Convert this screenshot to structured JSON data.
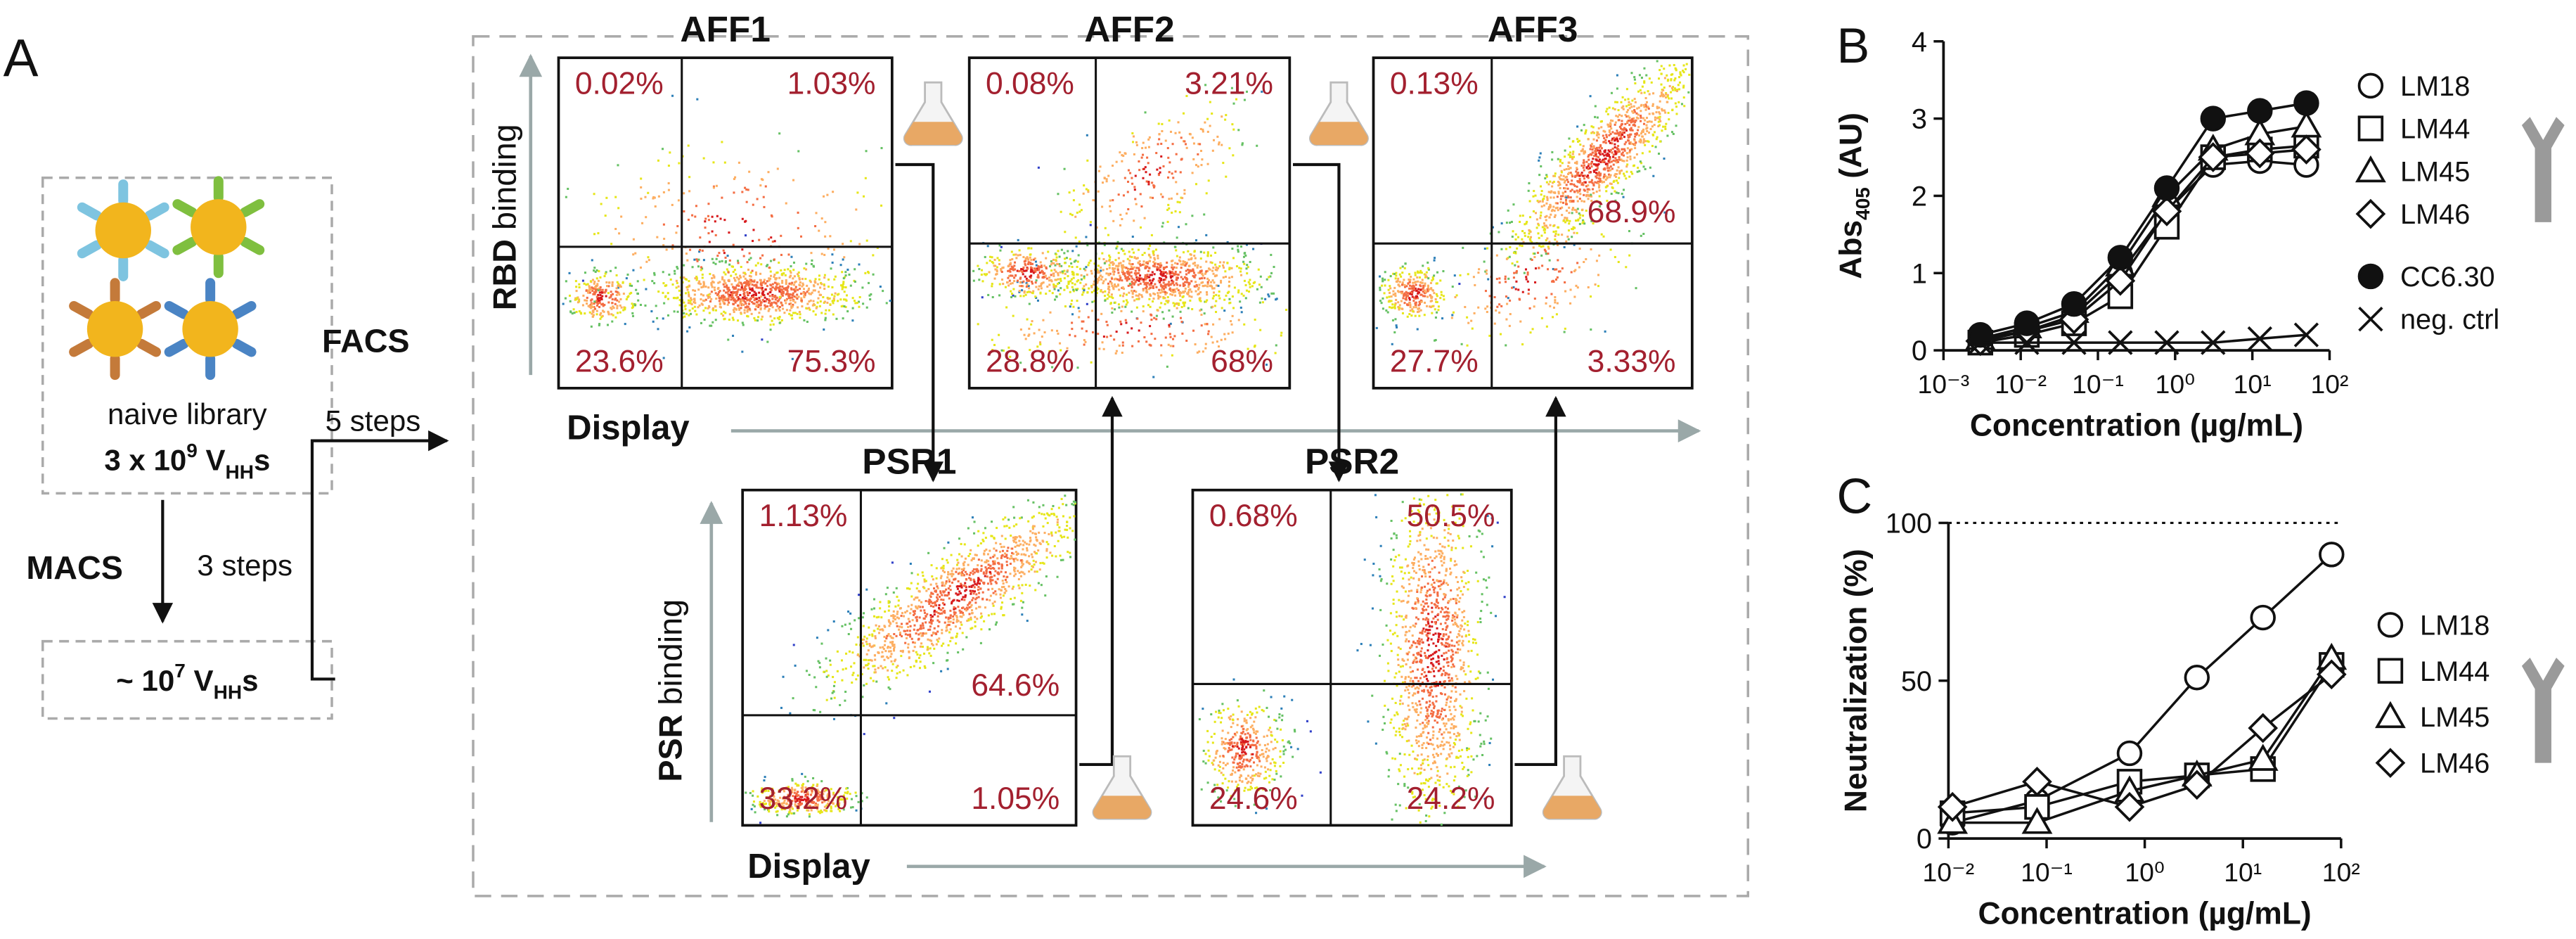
{
  "panel_a": {
    "label": "A",
    "library": {
      "line1": "naive library",
      "line2": [
        "3 x 10",
        "9",
        " V",
        "HH",
        "s"
      ]
    },
    "macs": "MACS",
    "macs_steps": "3 steps",
    "enriched": [
      "~ 10",
      "7",
      " V",
      "HH",
      "s"
    ],
    "facs": "FACS",
    "facs_steps": "5 steps",
    "rbd_axis": [
      "RBD",
      " binding"
    ],
    "psr_axis": [
      "PSR",
      " binding"
    ],
    "display_axis": "Display"
  },
  "facs": [
    {
      "title": "AFF1",
      "quadrants": [
        "0.02%",
        "1.03%",
        "23.6%",
        "75.3%"
      ]
    },
    {
      "title": "AFF2",
      "quadrants": [
        "0.08%",
        "3.21%",
        "28.8%",
        "68%"
      ]
    },
    {
      "title": "AFF3",
      "quadrants": [
        "0.13%",
        "68.9%",
        "27.7%",
        "3.33%"
      ]
    },
    {
      "title": "PSR1",
      "quadrants": [
        "1.13%",
        "64.6%",
        "33.2%",
        "1.05%"
      ]
    },
    {
      "title": "PSR2",
      "quadrants": [
        "0.68%",
        "50.5%",
        "24.6%",
        "24.2%"
      ]
    }
  ],
  "chart_data": [
    {
      "type": "line",
      "panel": "B",
      "xlabel": "Concentration (µg/mL)",
      "ylabel": [
        "Abs",
        "405",
        " (AU)"
      ],
      "xscale": "log",
      "x": [
        0.003,
        0.012,
        0.049,
        0.195,
        0.78,
        3.1,
        12.5,
        50
      ],
      "xlim": [
        0.001,
        100
      ],
      "xticks": [
        {
          "value": 0.001,
          "label": "10⁻³"
        },
        {
          "value": 0.01,
          "label": "10⁻²"
        },
        {
          "value": 0.1,
          "label": "10⁻¹"
        },
        {
          "value": 1,
          "label": "10⁰"
        },
        {
          "value": 10,
          "label": "10¹"
        },
        {
          "value": 100,
          "label": "10²"
        }
      ],
      "ylim": [
        0,
        4
      ],
      "yticks": [
        0,
        1,
        2,
        3,
        4
      ],
      "series": [
        {
          "name": "LM18",
          "marker": "circle",
          "color": "#111111",
          "values": [
            0.15,
            0.25,
            0.45,
            1.0,
            1.8,
            2.4,
            2.45,
            2.4
          ]
        },
        {
          "name": "LM44",
          "marker": "square",
          "color": "#111111",
          "values": [
            0.1,
            0.2,
            0.35,
            0.7,
            1.6,
            2.5,
            2.6,
            2.65
          ]
        },
        {
          "name": "LM45",
          "marker": "triangle",
          "color": "#111111",
          "values": [
            0.15,
            0.3,
            0.5,
            1.1,
            2.0,
            2.6,
            2.8,
            2.9
          ]
        },
        {
          "name": "LM46",
          "marker": "diamond",
          "color": "#111111",
          "values": [
            0.12,
            0.25,
            0.4,
            0.9,
            1.8,
            2.5,
            2.55,
            2.6
          ]
        },
        {
          "name": "CC6.30",
          "marker": "filled-circle",
          "color": "#111111",
          "values": [
            0.2,
            0.35,
            0.6,
            1.2,
            2.1,
            3.0,
            3.1,
            3.2
          ]
        },
        {
          "name": "neg. ctrl",
          "marker": "x",
          "color": "#111111",
          "values": [
            0.1,
            0.1,
            0.1,
            0.1,
            0.1,
            0.1,
            0.15,
            0.2
          ]
        }
      ]
    },
    {
      "type": "line",
      "panel": "C",
      "xlabel": "Concentration (µg/mL)",
      "ylabel": "Neutralization (%)",
      "xscale": "log",
      "x": [
        0.011,
        0.08,
        0.7,
        3.4,
        16,
        80
      ],
      "xlim": [
        0.01,
        100
      ],
      "xticks": [
        {
          "value": 0.01,
          "label": "10⁻²"
        },
        {
          "value": 0.1,
          "label": "10⁻¹"
        },
        {
          "value": 1,
          "label": "10⁰"
        },
        {
          "value": 10,
          "label": "10¹"
        },
        {
          "value": 100,
          "label": "10²"
        }
      ],
      "ylim": [
        0,
        100
      ],
      "yticks": [
        0,
        50,
        100
      ],
      "series": [
        {
          "name": "LM18",
          "marker": "circle",
          "color": "#111111",
          "values": [
            5,
            12,
            27,
            51,
            70,
            90
          ]
        },
        {
          "name": "LM44",
          "marker": "square",
          "color": "#111111",
          "values": [
            8,
            10,
            18,
            20,
            22,
            55
          ]
        },
        {
          "name": "LM45",
          "marker": "triangle",
          "color": "#111111",
          "values": [
            5,
            5,
            15,
            20,
            25,
            57
          ]
        },
        {
          "name": "LM46",
          "marker": "diamond",
          "color": "#111111",
          "values": [
            10,
            18,
            10,
            17,
            35,
            52
          ]
        }
      ]
    }
  ]
}
